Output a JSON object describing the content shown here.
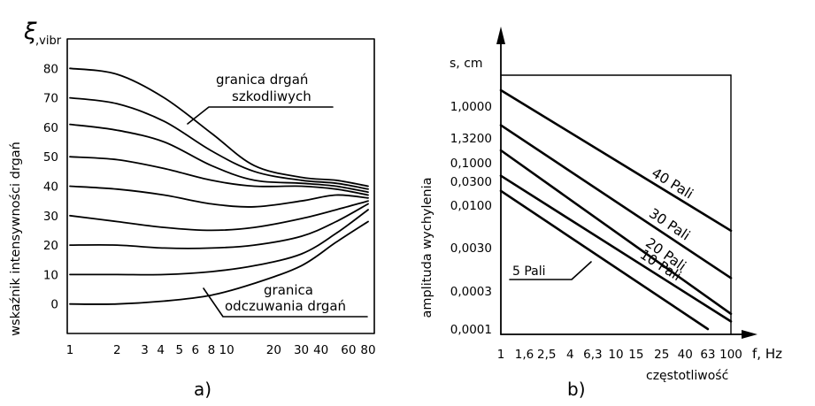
{
  "chart_data": [
    {
      "panel": "a)",
      "type": "line",
      "ylabel_symbol": "ξ",
      "ylabel_unit": ",vibr",
      "ylabel_side": "wskaźnik intensywności drgań",
      "x_ticks": [
        "1",
        "2",
        "3",
        "4",
        "5",
        "6",
        "8",
        "10",
        "20",
        "30",
        "40",
        "60",
        "80"
      ],
      "y_ticks": [
        "0",
        "10",
        "20",
        "30",
        "40",
        "50",
        "60",
        "70",
        "80"
      ],
      "xlim": [
        1,
        80
      ],
      "ylim": [
        -10,
        90
      ],
      "x_scale": "log",
      "series": [
        {
          "start": 80,
          "x": [
            1,
            2,
            4,
            8,
            15,
            30,
            50,
            80
          ],
          "y": [
            80,
            78,
            70,
            58,
            47,
            43,
            42,
            40
          ]
        },
        {
          "start": 70,
          "x": [
            1,
            2,
            4,
            8,
            15,
            30,
            50,
            80
          ],
          "y": [
            70,
            68,
            62,
            52,
            45,
            42,
            41,
            39
          ]
        },
        {
          "start": 60,
          "x": [
            1,
            2,
            4,
            8,
            15,
            30,
            50,
            80
          ],
          "y": [
            61,
            59,
            55,
            47,
            42,
            41,
            40,
            38
          ]
        },
        {
          "start": 50,
          "x": [
            1,
            2,
            4,
            8,
            15,
            30,
            50,
            80
          ],
          "y": [
            50,
            49,
            46,
            42,
            40,
            40,
            39,
            37
          ]
        },
        {
          "start": 40,
          "x": [
            1,
            2,
            4,
            8,
            15,
            30,
            50,
            80
          ],
          "y": [
            40,
            39,
            37,
            34,
            33,
            35,
            37,
            36
          ]
        },
        {
          "start": 30,
          "x": [
            1,
            2,
            4,
            8,
            15,
            30,
            50,
            80
          ],
          "y": [
            30,
            28,
            26,
            25,
            26,
            29,
            32,
            35
          ]
        },
        {
          "start": 20,
          "x": [
            1,
            2,
            4,
            8,
            15,
            30,
            50,
            80
          ],
          "y": [
            20,
            20,
            19,
            19,
            20,
            23,
            28,
            34
          ]
        },
        {
          "start": 10,
          "x": [
            1,
            2,
            4,
            8,
            15,
            30,
            50,
            80
          ],
          "y": [
            10,
            10,
            10,
            11,
            13,
            17,
            24,
            32
          ]
        },
        {
          "start": 0,
          "x": [
            1,
            2,
            4,
            8,
            15,
            30,
            50,
            80
          ],
          "y": [
            0,
            0,
            1,
            3,
            7,
            13,
            21,
            28
          ]
        }
      ],
      "annotations": [
        {
          "text": "granica drgań",
          "text2": "szkodliwych"
        },
        {
          "text": "granica",
          "text2": "odczuwania drgań"
        }
      ]
    },
    {
      "panel": "b)",
      "type": "line",
      "ylabel_unit": "s, cm",
      "ylabel_side": "amplituda  wychylenia",
      "xlabel_unit": "f, Hz",
      "xlabel": "częstotliwość",
      "x_ticks": [
        "1",
        "1,6",
        "2,5",
        "4",
        "6,3",
        "10",
        "15",
        "25",
        "40",
        "63",
        "100"
      ],
      "y_ticks": [
        "0,0001",
        "0,0003",
        "0,0030",
        "0,0100",
        "0,0300",
        "0,1000",
        "1,3200",
        "1,0000"
      ],
      "series": [
        {
          "name": "40 Pali",
          "f": [
            1,
            100
          ],
          "level": [
            7.5,
            2.4
          ]
        },
        {
          "name": "30 Pali",
          "f": [
            1,
            100
          ],
          "level": [
            6.4,
            1.3
          ]
        },
        {
          "name": "20 Pali",
          "f": [
            1,
            100
          ],
          "level": [
            5.5,
            0.4
          ]
        },
        {
          "name": "10 Pali",
          "f": [
            1,
            100
          ],
          "level": [
            4.3,
            -0.2
          ]
        },
        {
          "name": "5 Pali",
          "f": [
            1,
            63
          ],
          "level": [
            3.6,
            0
          ]
        }
      ]
    }
  ],
  "captions": [
    "a)",
    "b)"
  ]
}
